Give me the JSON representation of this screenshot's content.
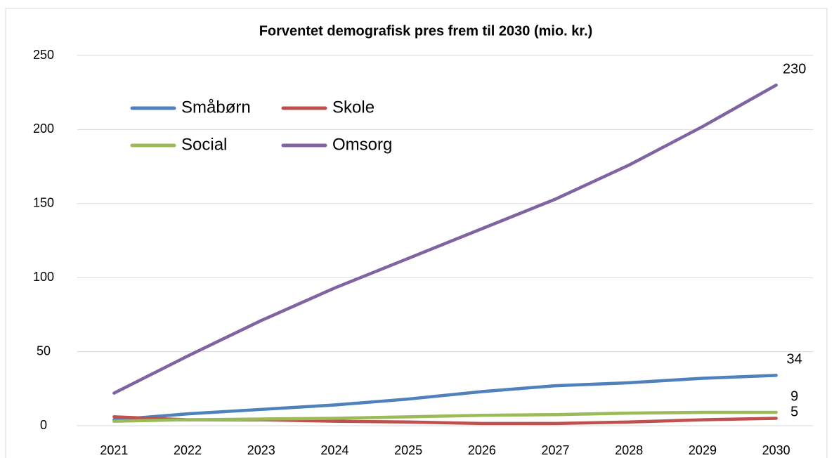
{
  "chart_data": {
    "type": "line",
    "title": "Forventet demografisk pres frem til 2030 (mio. kr.)",
    "categories": [
      "2021",
      "2022",
      "2023",
      "2024",
      "2025",
      "2026",
      "2027",
      "2028",
      "2029",
      "2030"
    ],
    "series": [
      {
        "name": "Småbørn",
        "color": "#4f81bd",
        "values": [
          4,
          8,
          11,
          14,
          18,
          23,
          27,
          29,
          32,
          34
        ]
      },
      {
        "name": "Skole",
        "color": "#c0504d",
        "values": [
          6,
          4,
          4,
          3,
          2.5,
          1.5,
          1.5,
          2.5,
          4,
          5
        ]
      },
      {
        "name": "Social",
        "color": "#9bbb59",
        "values": [
          3,
          4,
          4.5,
          5,
          6,
          7,
          7.5,
          8.5,
          9,
          9
        ]
      },
      {
        "name": "Omsorg",
        "color": "#8064a2",
        "values": [
          22,
          47,
          71,
          93,
          113,
          133,
          153,
          176,
          202,
          230
        ]
      }
    ],
    "ylim": [
      0,
      250
    ],
    "yticks": [
      0,
      50,
      100,
      150,
      200,
      250
    ],
    "grid": true,
    "data_labels": "last",
    "legend": "top-left"
  }
}
